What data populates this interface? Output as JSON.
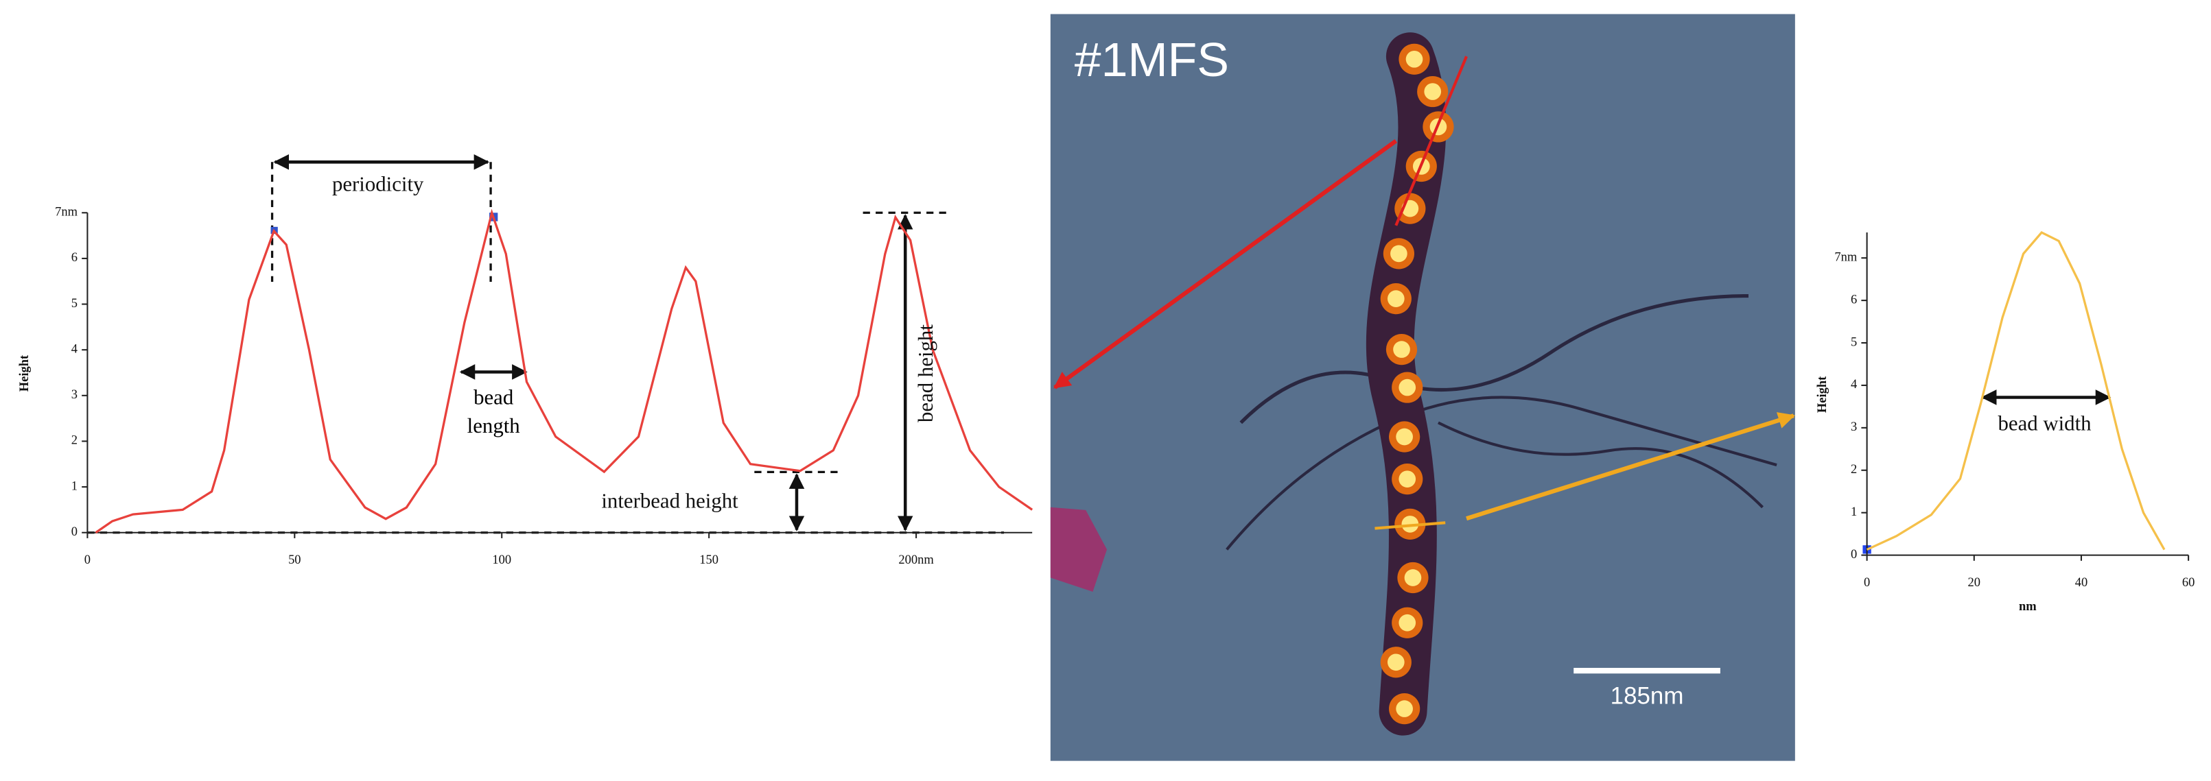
{
  "chart_data": [
    {
      "type": "line",
      "y_label": "Height",
      "color": "#e8413c",
      "x": [
        2,
        6,
        11,
        23,
        30,
        33,
        39,
        45,
        48,
        53.5,
        58.6,
        67,
        72,
        77,
        84,
        91,
        97.6,
        101,
        106,
        113,
        124.7,
        133,
        141,
        144.4,
        146.8,
        153.5,
        160,
        172,
        180,
        186,
        192.5,
        195,
        198.6,
        204,
        213,
        220,
        228
      ],
      "values": [
        0,
        0.25,
        0.4,
        0.5,
        0.9,
        1.8,
        5.1,
        6.6,
        6.3,
        4,
        1.6,
        0.55,
        0.3,
        0.55,
        1.5,
        4.6,
        7,
        6.1,
        3.3,
        2.1,
        1.33,
        2.1,
        4.9,
        5.8,
        5.5,
        2.4,
        1.5,
        1.35,
        1.8,
        3,
        6.1,
        6.9,
        6.4,
        4,
        1.8,
        1,
        0.5
      ],
      "xlim": [
        0,
        228
      ],
      "ylim": [
        0,
        7
      ],
      "xticks": [
        0,
        50,
        100,
        150,
        {
          "value": 200,
          "label": "200nm"
        }
      ],
      "yticks": [
        0,
        1,
        2,
        3,
        4,
        5,
        6,
        {
          "value": 7,
          "label": "7nm"
        }
      ],
      "annotations": [
        "periodicity",
        "bead length",
        "interbead height",
        "bead height"
      ]
    },
    {
      "type": "line",
      "x_label": "nm",
      "y_label": "Height",
      "color": "#f5c04a",
      "x": [
        0,
        5.5,
        12,
        17.4,
        21.3,
        25.3,
        29.2,
        32.6,
        35.8,
        39.7,
        43.7,
        47.6,
        51.6,
        55.5
      ],
      "values": [
        0.13,
        0.45,
        0.95,
        1.8,
        3.6,
        5.6,
        7.1,
        7.6,
        7.4,
        6.4,
        4.5,
        2.5,
        1,
        0.13
      ],
      "xlim": [
        0,
        60
      ],
      "ylim": [
        0,
        7.6
      ],
      "xticks": [
        0,
        20,
        40,
        60
      ],
      "yticks": [
        0,
        1,
        2,
        3,
        4,
        5,
        6,
        {
          "value": 7,
          "label": "7nm"
        }
      ],
      "annotations": [
        "bead width"
      ]
    }
  ],
  "image": {
    "label": "#1MFS",
    "scale_bar": "185nm"
  }
}
